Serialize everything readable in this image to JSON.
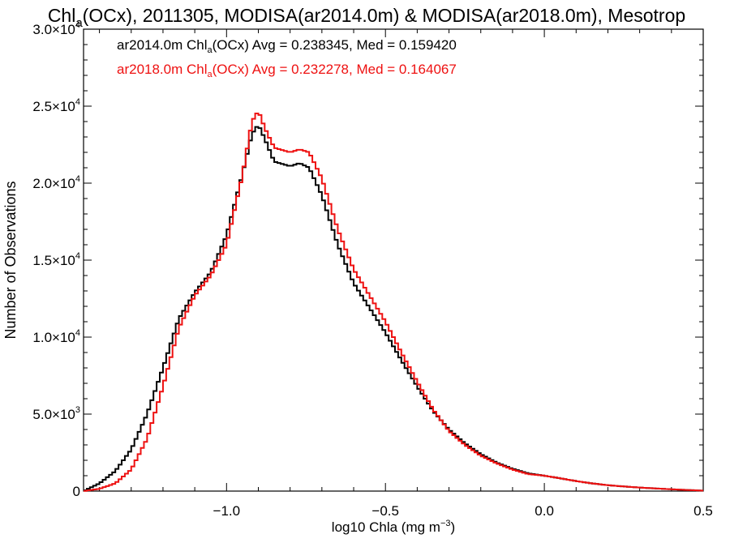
{
  "chart_data": {
    "type": "line",
    "title_parts": {
      "pre": "Chl",
      "sub": "a",
      "post": "(OCx), 2011305, MODISA(ar2014.0m) & MODISA(ar2018.0m), Mesotrop"
    },
    "xlabel_parts": {
      "pre": "log10 Chla (mg m",
      "sup": "−3",
      "post": ")"
    },
    "ylabel": "Number of Observations",
    "xlim": [
      -1.45,
      0.5
    ],
    "ylim": [
      0,
      30000
    ],
    "x_ticks": [
      {
        "value": -1.0,
        "label": "−1.0"
      },
      {
        "value": -0.5,
        "label": "−0.5"
      },
      {
        "value": 0.0,
        "label": "0.0"
      },
      {
        "value": 0.5,
        "label": "0.5"
      }
    ],
    "y_ticks": [
      {
        "value": 0,
        "mantissa": "0",
        "exp": ""
      },
      {
        "value": 5000,
        "mantissa": "5.0×10",
        "exp": "3"
      },
      {
        "value": 10000,
        "mantissa": "1.0×10",
        "exp": "4"
      },
      {
        "value": 15000,
        "mantissa": "1.5×10",
        "exp": "4"
      },
      {
        "value": 20000,
        "mantissa": "2.0×10",
        "exp": "4"
      },
      {
        "value": 25000,
        "mantissa": "2.5×10",
        "exp": "4"
      },
      {
        "value": 30000,
        "mantissa": "3.0×10",
        "exp": "4"
      }
    ],
    "legend": [
      {
        "color": "#000000",
        "pre": "ar2014.0m Chl",
        "sub": "a",
        "post": "(OCx) Avg = 0.238345, Med = 0.159420"
      },
      {
        "color": "#ee1111",
        "pre": "ar2018.0m Chl",
        "sub": "a",
        "post": "(OCx) Avg = 0.232278, Med = 0.164067"
      }
    ],
    "series": [
      {
        "color": "#000000",
        "x": [
          -1.45,
          -1.4,
          -1.35,
          -1.3,
          -1.25,
          -1.2,
          -1.15,
          -1.1,
          -1.05,
          -1.0,
          -0.95,
          -0.92,
          -0.9,
          -0.88,
          -0.85,
          -0.8,
          -0.77,
          -0.74,
          -0.7,
          -0.65,
          -0.6,
          -0.55,
          -0.5,
          -0.45,
          -0.4,
          -0.35,
          -0.3,
          -0.25,
          -0.2,
          -0.15,
          -0.1,
          -0.05,
          0.0,
          0.05,
          0.1,
          0.15,
          0.2,
          0.25,
          0.3,
          0.35,
          0.4,
          0.45,
          0.5
        ],
        "y": [
          0,
          500,
          1300,
          2700,
          5000,
          8000,
          11200,
          12900,
          14200,
          16600,
          20600,
          23200,
          23800,
          22900,
          21400,
          21100,
          21300,
          21000,
          19200,
          16000,
          13500,
          11900,
          10300,
          8500,
          6800,
          5200,
          4000,
          3100,
          2400,
          1850,
          1450,
          1150,
          1000,
          830,
          650,
          500,
          380,
          300,
          230,
          170,
          120,
          70,
          30
        ]
      },
      {
        "color": "#ee1111",
        "x": [
          -1.45,
          -1.4,
          -1.35,
          -1.3,
          -1.25,
          -1.2,
          -1.15,
          -1.1,
          -1.05,
          -1.0,
          -0.95,
          -0.92,
          -0.9,
          -0.88,
          -0.85,
          -0.8,
          -0.77,
          -0.74,
          -0.7,
          -0.65,
          -0.6,
          -0.55,
          -0.5,
          -0.45,
          -0.4,
          -0.35,
          -0.3,
          -0.25,
          -0.2,
          -0.15,
          -0.1,
          -0.05,
          0.0,
          0.05,
          0.1,
          0.15,
          0.2,
          0.25,
          0.3,
          0.35,
          0.4,
          0.45,
          0.5
        ],
        "y": [
          0,
          150,
          500,
          1400,
          3400,
          6800,
          10600,
          12700,
          14000,
          16000,
          20500,
          24000,
          24700,
          23600,
          22300,
          22000,
          22200,
          22000,
          20300,
          17000,
          14400,
          12700,
          11000,
          9000,
          7100,
          5300,
          3900,
          3000,
          2300,
          1800,
          1400,
          1100,
          1000,
          830,
          650,
          500,
          380,
          300,
          230,
          170,
          120,
          70,
          30
        ]
      }
    ]
  }
}
